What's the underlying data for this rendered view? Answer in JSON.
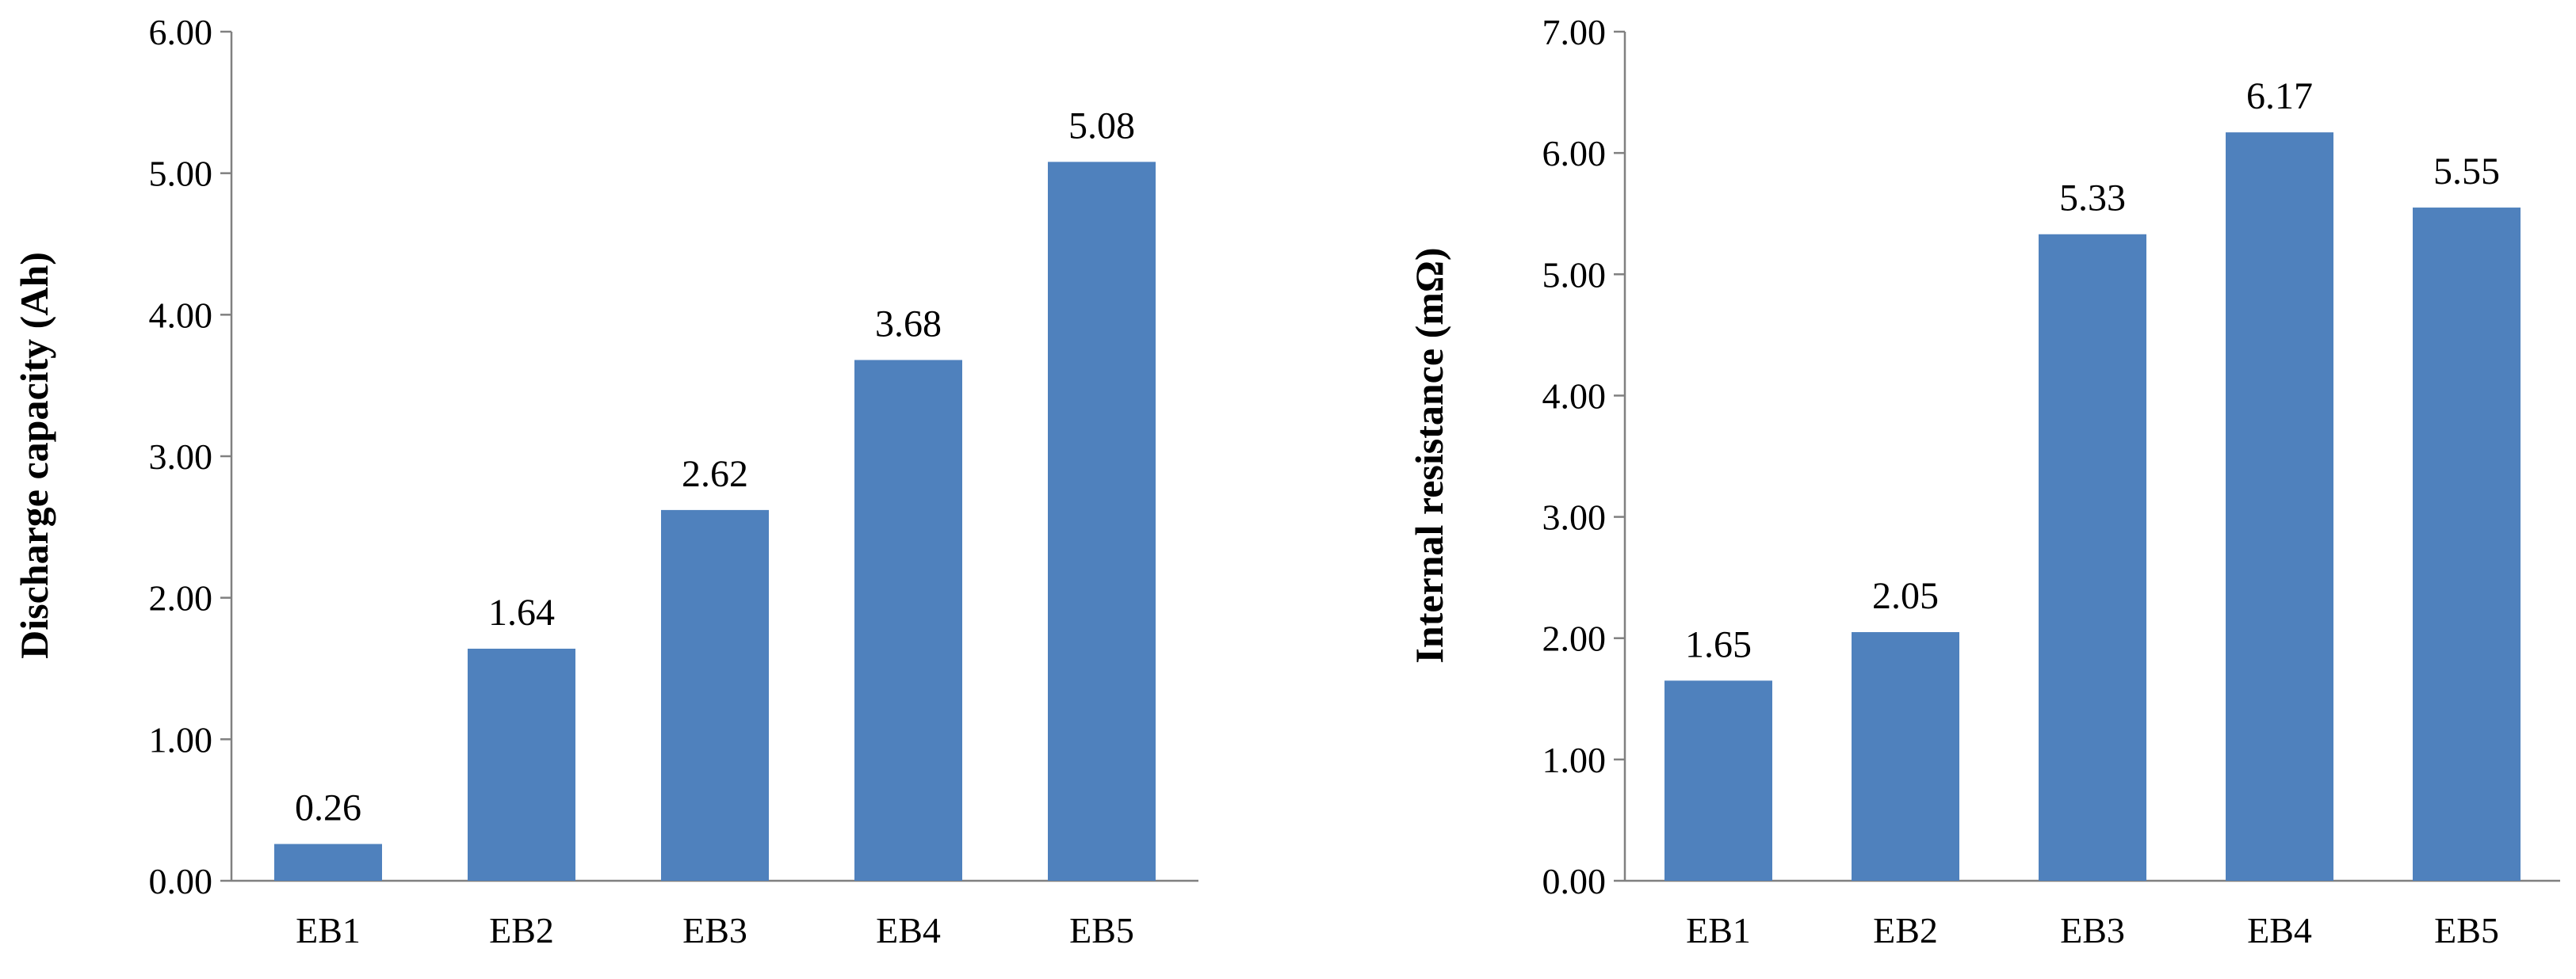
{
  "chart_data": [
    {
      "type": "bar",
      "title": "",
      "xlabel": "",
      "ylabel": "Discharge capacity (Ah)",
      "categories": [
        "EB1",
        "EB2",
        "EB3",
        "EB4",
        "EB5"
      ],
      "values": [
        0.26,
        1.64,
        2.62,
        3.68,
        5.08
      ],
      "data_labels": [
        "0.26",
        "1.64",
        "2.62",
        "3.68",
        "5.08"
      ],
      "ylim": [
        0,
        6
      ],
      "yticks": [
        "0.00",
        "1.00",
        "2.00",
        "3.00",
        "4.00",
        "5.00",
        "6.00"
      ],
      "grid": false,
      "legend": "none",
      "bar_color": "#4F81BD"
    },
    {
      "type": "bar",
      "title": "",
      "xlabel": "",
      "ylabel": "Internal resistance (mΩ)",
      "categories": [
        "EB1",
        "EB2",
        "EB3",
        "EB4",
        "EB5"
      ],
      "values": [
        1.65,
        2.05,
        5.33,
        6.17,
        5.55
      ],
      "data_labels": [
        "1.65",
        "2.05",
        "5.33",
        "6.17",
        "5.55"
      ],
      "ylim": [
        0,
        7
      ],
      "yticks": [
        "0.00",
        "1.00",
        "2.00",
        "3.00",
        "4.00",
        "5.00",
        "6.00",
        "7.00"
      ],
      "grid": false,
      "legend": "none",
      "bar_color": "#4F81BD"
    }
  ]
}
